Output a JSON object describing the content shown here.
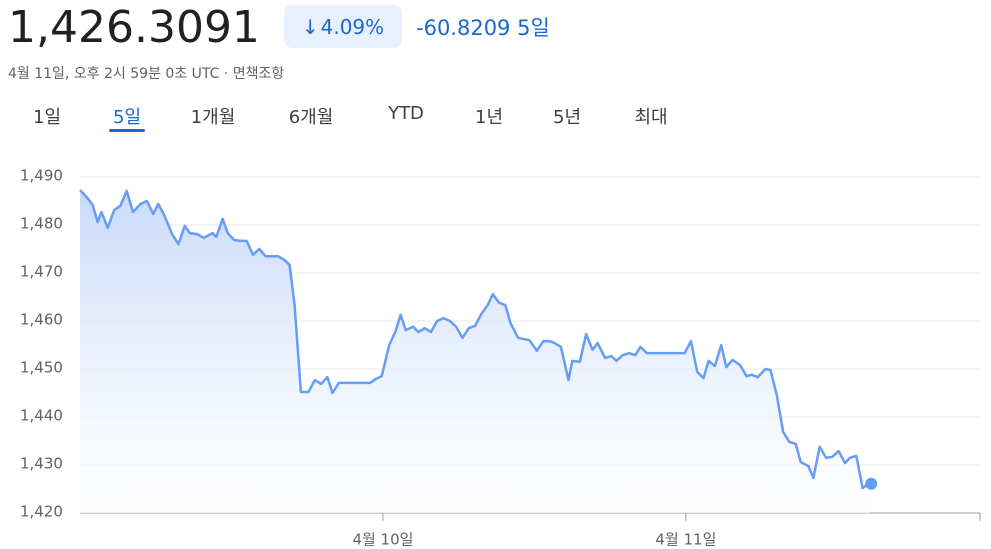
{
  "header": {
    "price": "1,426.3091",
    "change_percent": "4.09%",
    "change_value": "-60.8209",
    "period": "5일",
    "subtitle": "4월 11일, 오후 2시 59분 0초 UTC · 면책조항",
    "tabs": [
      "1일",
      "5일",
      "1개월",
      "6개월",
      "YTD",
      "1년",
      "5년",
      "최대"
    ],
    "active_tab": 1
  },
  "chart_data": {
    "type": "line",
    "x": [
      -24.0,
      -23.4,
      -23.0,
      -22.6,
      -22.3,
      -21.8,
      -21.3,
      -20.8,
      -20.3,
      -19.8,
      -19.2,
      -18.7,
      -18.2,
      -17.8,
      -17.3,
      -16.7,
      -16.2,
      -15.7,
      -15.3,
      -14.7,
      -14.2,
      -13.5,
      -13.2,
      -12.7,
      -12.3,
      -11.8,
      -11.3,
      -10.8,
      -10.3,
      -9.8,
      -9.3,
      -8.3,
      -7.8,
      -7.4,
      -7.0,
      -6.5,
      -5.9,
      -5.4,
      -4.9,
      -4.4,
      -4.0,
      -3.5,
      -1.0,
      -0.6,
      -0.1,
      0.5,
      1.0,
      1.4,
      1.8,
      2.4,
      2.8,
      3.3,
      3.8,
      4.3,
      4.8,
      5.3,
      5.8,
      6.3,
      6.8,
      7.3,
      7.8,
      8.3,
      8.7,
      9.2,
      9.7,
      10.1,
      10.7,
      11.6,
      12.2,
      12.7,
      13.2,
      13.6,
      14.1,
      14.7,
      15.0,
      15.6,
      16.1,
      16.6,
      17.0,
      17.6,
      18.1,
      18.5,
      19.0,
      19.5,
      20.0,
      20.4,
      20.9,
      23.9,
      24.4,
      24.9,
      25.4,
      25.8,
      26.3,
      26.8,
      27.2,
      27.7,
      28.3,
      28.8,
      29.2,
      29.7,
      30.3,
      30.7,
      31.2,
      31.7,
      32.2,
      32.7,
      33.1,
      33.7,
      34.1,
      34.6,
      35.1,
      35.6,
      36.1,
      36.6,
      37.0,
      37.5,
      38.0,
      38.6
    ],
    "series": [
      {
        "color": "#669df6",
        "values": [
          1487.3,
          1485.6,
          1484.2,
          1480.6,
          1482.7,
          1479.4,
          1483.1,
          1484.0,
          1487.1,
          1482.7,
          1484.4,
          1485.0,
          1482.3,
          1484.4,
          1481.9,
          1478.1,
          1476.0,
          1479.8,
          1478.3,
          1478.1,
          1477.3,
          1478.3,
          1477.5,
          1481.3,
          1478.3,
          1476.9,
          1476.7,
          1476.7,
          1473.8,
          1475.0,
          1473.5,
          1473.5,
          1472.7,
          1471.7,
          1463.3,
          1445.2,
          1445.2,
          1447.7,
          1446.9,
          1448.3,
          1445.0,
          1447.1,
          1447.1,
          1447.9,
          1448.5,
          1455.0,
          1457.9,
          1461.3,
          1458.1,
          1458.8,
          1457.7,
          1458.5,
          1457.7,
          1460.0,
          1460.6,
          1460.0,
          1458.8,
          1456.5,
          1458.5,
          1459.0,
          1461.5,
          1463.3,
          1465.6,
          1463.8,
          1463.3,
          1459.6,
          1456.5,
          1456.0,
          1453.8,
          1455.8,
          1455.8,
          1455.4,
          1454.6,
          1447.7,
          1451.7,
          1451.5,
          1457.3,
          1454.0,
          1455.4,
          1452.3,
          1452.7,
          1451.7,
          1452.9,
          1453.3,
          1452.9,
          1454.6,
          1453.3,
          1453.3,
          1455.8,
          1449.4,
          1448.1,
          1451.7,
          1450.6,
          1455.0,
          1450.4,
          1451.9,
          1450.8,
          1448.5,
          1448.8,
          1448.3,
          1450.0,
          1449.8,
          1444.6,
          1436.9,
          1434.8,
          1434.4,
          1430.6,
          1429.8,
          1427.3,
          1433.8,
          1431.5,
          1431.7,
          1432.9,
          1430.4,
          1431.5,
          1431.9,
          1425.2,
          1426.3
        ]
      }
    ],
    "xlim": [
      -24,
      47.3
    ],
    "xticks": [
      {
        "value": 0,
        "label": "4월 10일"
      },
      {
        "value": 24,
        "label": "4월 11일"
      }
    ],
    "ylim": [
      1420,
      1490
    ],
    "yticks": [
      {
        "value": 1420,
        "label": "1,420"
      },
      {
        "value": 1430,
        "label": "1,430"
      },
      {
        "value": 1440,
        "label": "1,440"
      },
      {
        "value": 1450,
        "label": "1,450"
      },
      {
        "value": 1460,
        "label": "1,460"
      },
      {
        "value": 1470,
        "label": "1,470"
      },
      {
        "value": 1480,
        "label": "1,480"
      },
      {
        "value": 1490,
        "label": "1,490"
      }
    ],
    "grid": true
  }
}
